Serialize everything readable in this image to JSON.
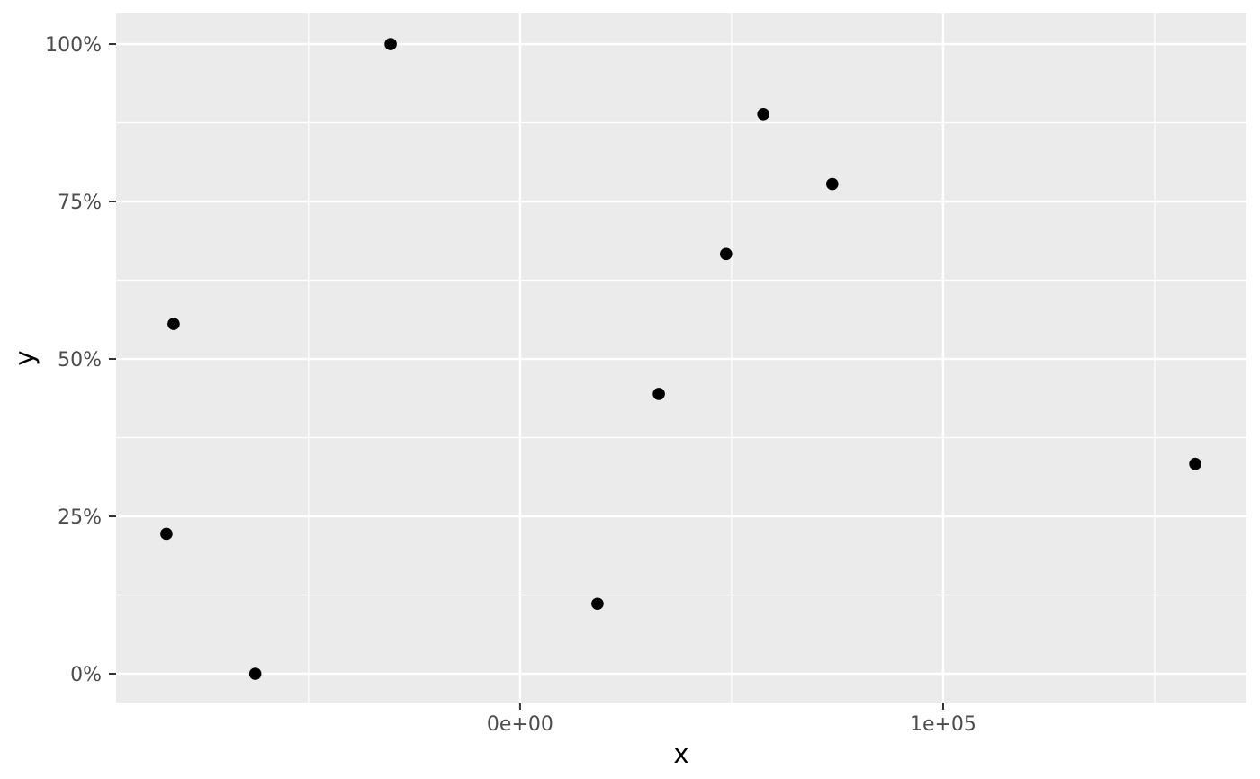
{
  "chart_data": {
    "type": "scatter",
    "title": "",
    "xlabel": "x",
    "ylabel": "y",
    "xlim": [
      -95500,
      171700
    ],
    "ylim": [
      -0.0457,
      1.0486
    ],
    "grid": true,
    "legend": "none",
    "x_axis": {
      "title": "x",
      "major_ticks": [
        {
          "value": 0,
          "label": "0e+00"
        },
        {
          "value": 100000,
          "label": "1e+05"
        }
      ],
      "minor_ticks": [
        -50000,
        50000,
        150000
      ]
    },
    "y_axis": {
      "title": "y",
      "format": "percent",
      "major_ticks": [
        {
          "value": 0.0,
          "label": "0%"
        },
        {
          "value": 0.25,
          "label": "25%"
        },
        {
          "value": 0.5,
          "label": "50%"
        },
        {
          "value": 0.75,
          "label": "75%"
        },
        {
          "value": 1.0,
          "label": "100%"
        }
      ],
      "minor_ticks": [
        0.125,
        0.375,
        0.625,
        0.875
      ]
    },
    "points": [
      {
        "x": -30600,
        "y": 1.0
      },
      {
        "x": 57500,
        "y": 0.8889
      },
      {
        "x": 73800,
        "y": 0.7778
      },
      {
        "x": 48700,
        "y": 0.6667
      },
      {
        "x": -81900,
        "y": 0.5556
      },
      {
        "x": 32800,
        "y": 0.4444
      },
      {
        "x": 159600,
        "y": 0.3333
      },
      {
        "x": -83600,
        "y": 0.2222
      },
      {
        "x": 18300,
        "y": 0.1111
      },
      {
        "x": -62600,
        "y": 0.0
      }
    ],
    "point_radius_px": 6.8,
    "colors": {
      "panel_bg": "#EBEBEB",
      "grid": "#FFFFFF",
      "point": "#000000",
      "tick_label": "#4D4D4D",
      "axis_title": "#000000",
      "tick_mark": "#333333"
    }
  }
}
